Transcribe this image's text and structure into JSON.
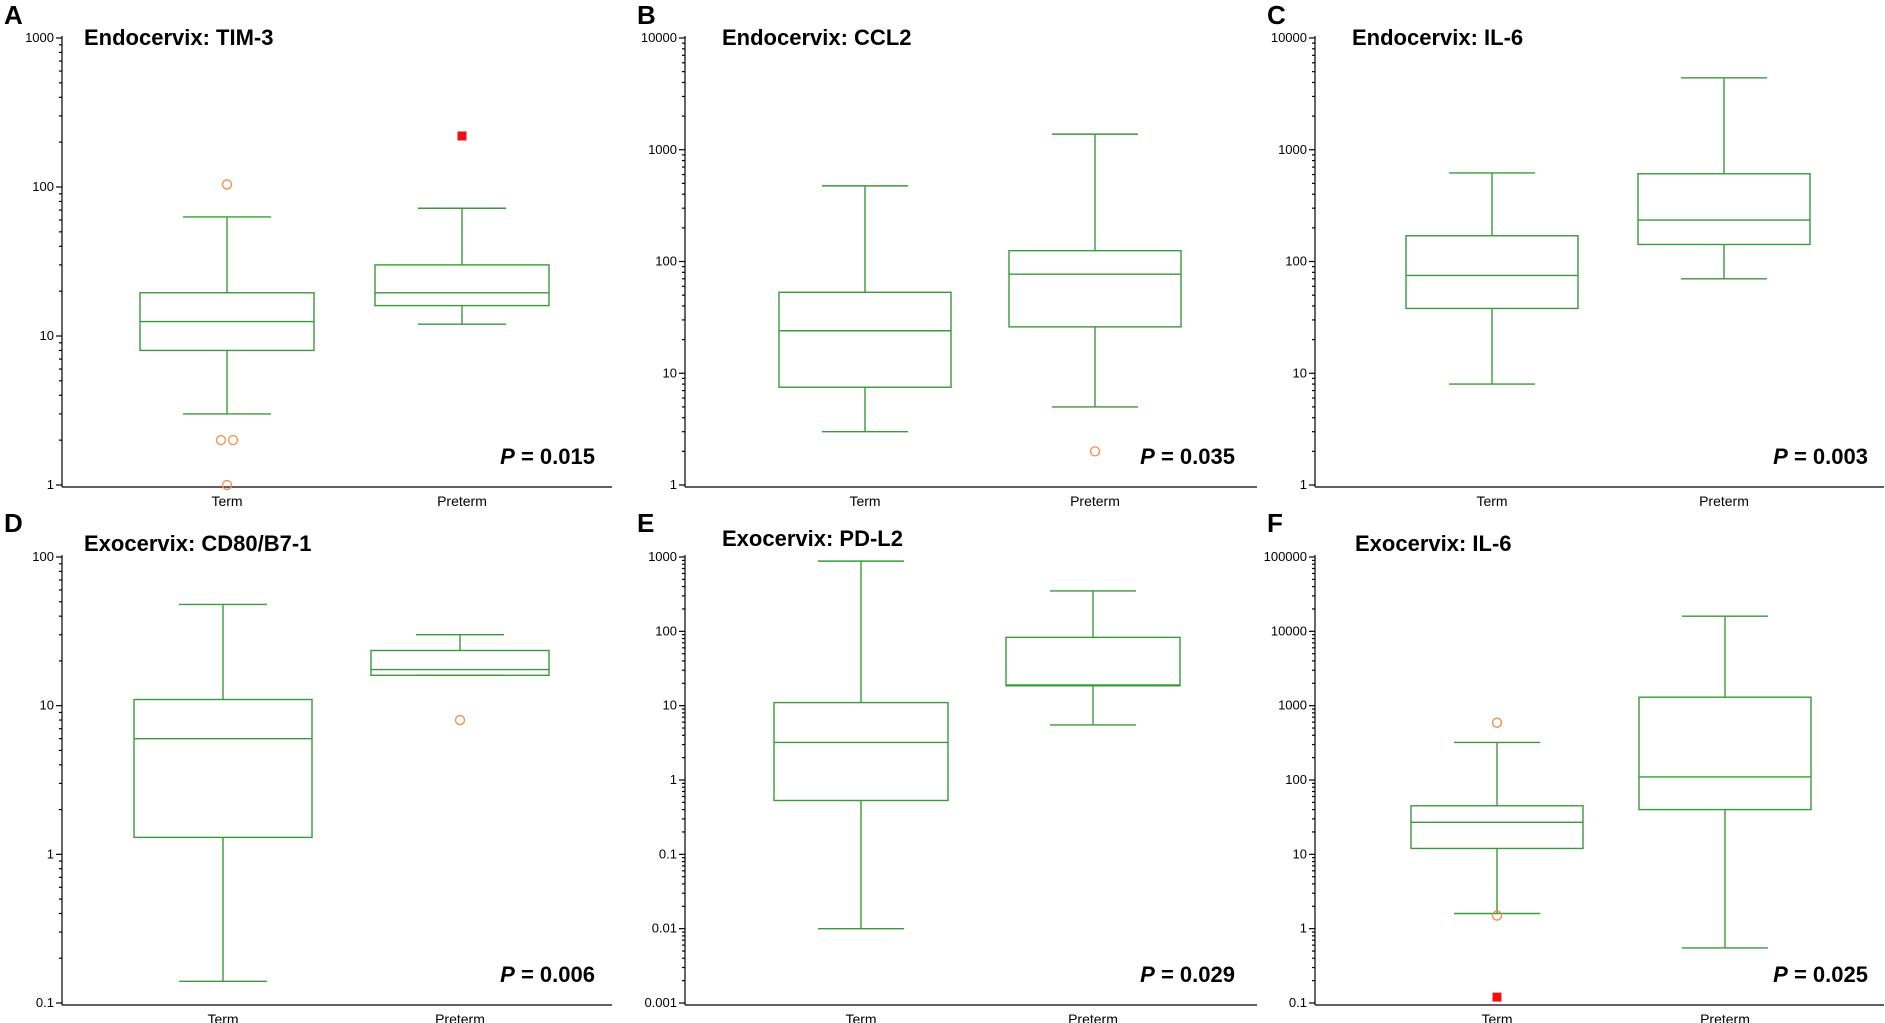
{
  "colors": {
    "box": "#3a9a3a",
    "outlier_open": "#f08c4a",
    "outlier_far": "#ee1111",
    "axis": "#000000"
  },
  "chart_data": [
    {
      "type": "boxplot",
      "panel": "A",
      "title": "Endocervix: TIM-3",
      "yscale": "log",
      "ylim": [
        1,
        1000
      ],
      "yticks": [
        1,
        10,
        100,
        1000
      ],
      "ytick_labels": [
        "1",
        "10",
        "100",
        "1000"
      ],
      "categories": [
        "Term",
        "Preterm"
      ],
      "series": [
        {
          "name": "Term",
          "whisker_low": 3,
          "q1": 8,
          "median": 12.5,
          "q3": 19.5,
          "whisker_high": 63,
          "outliers": [
            104,
            2,
            2,
            1
          ],
          "outlier_offsets": [
            0,
            -0.5,
            0.5,
            0
          ],
          "far_outliers": []
        },
        {
          "name": "Preterm",
          "whisker_low": 12,
          "q1": 16,
          "median": 19.5,
          "q3": 30,
          "whisker_high": 72,
          "outliers": [],
          "outlier_offsets": [],
          "far_outliers": [
            220
          ]
        }
      ],
      "pvalue_prefix": "P",
      "pvalue_text": " = 0.015"
    },
    {
      "type": "boxplot",
      "panel": "B",
      "title": "Endocervix: CCL2",
      "yscale": "log",
      "ylim": [
        1,
        10000
      ],
      "yticks": [
        1,
        10,
        100,
        1000,
        10000
      ],
      "ytick_labels": [
        "1",
        "10",
        "100",
        "1000",
        "10000"
      ],
      "categories": [
        "Term",
        "Preterm"
      ],
      "series": [
        {
          "name": "Term",
          "whisker_low": 3,
          "q1": 7.5,
          "median": 24,
          "q3": 53,
          "whisker_high": 475,
          "outliers": [],
          "outlier_offsets": [],
          "far_outliers": []
        },
        {
          "name": "Preterm",
          "whisker_low": 5,
          "q1": 26,
          "median": 77,
          "q3": 125,
          "whisker_high": 1380,
          "outliers": [
            2
          ],
          "outlier_offsets": [
            0
          ],
          "far_outliers": []
        }
      ],
      "pvalue_prefix": "P",
      "pvalue_text": " = 0.035"
    },
    {
      "type": "boxplot",
      "panel": "C",
      "title": "Endocervix: IL-6",
      "yscale": "log",
      "ylim": [
        1,
        10000
      ],
      "yticks": [
        1,
        10,
        100,
        1000,
        10000
      ],
      "ytick_labels": [
        "1",
        "10",
        "100",
        "1000",
        "10000"
      ],
      "categories": [
        "Term",
        "Preterm"
      ],
      "series": [
        {
          "name": "Term",
          "whisker_low": 8,
          "q1": 38,
          "median": 75,
          "q3": 170,
          "whisker_high": 620,
          "outliers": [],
          "outlier_offsets": [],
          "far_outliers": []
        },
        {
          "name": "Preterm",
          "whisker_low": 70,
          "q1": 142,
          "median": 235,
          "q3": 610,
          "whisker_high": 4400,
          "outliers": [],
          "outlier_offsets": [],
          "far_outliers": []
        }
      ],
      "pvalue_prefix": "P",
      "pvalue_text": " = 0.003"
    },
    {
      "type": "boxplot",
      "panel": "D",
      "title": "Exocervix: CD80/B7-1",
      "yscale": "log",
      "ylim": [
        0.1,
        100
      ],
      "yticks": [
        0.1,
        1,
        10,
        100
      ],
      "ytick_labels": [
        "0.1",
        "1",
        "10",
        "100"
      ],
      "categories": [
        "Term",
        "Preterm"
      ],
      "series": [
        {
          "name": "Term",
          "whisker_low": 0.14,
          "q1": 1.3,
          "median": 6,
          "q3": 11,
          "whisker_high": 48,
          "outliers": [],
          "outlier_offsets": [],
          "far_outliers": []
        },
        {
          "name": "Preterm",
          "whisker_low": 16,
          "q1": 16,
          "median": 17.5,
          "q3": 23.5,
          "whisker_high": 30,
          "outliers": [
            8
          ],
          "outlier_offsets": [
            0
          ],
          "far_outliers": []
        }
      ],
      "pvalue_prefix": "P",
      "pvalue_text": " = 0.006"
    },
    {
      "type": "boxplot",
      "panel": "E",
      "title": "Exocervix: PD-L2",
      "yscale": "log",
      "ylim": [
        0.001,
        1000
      ],
      "yticks": [
        0.001,
        0.01,
        0.1,
        1,
        10,
        100,
        1000
      ],
      "ytick_labels": [
        "0.001",
        "0.01",
        "0.1",
        "1",
        "10",
        "100",
        "1000"
      ],
      "categories": [
        "Term",
        "Preterm"
      ],
      "series": [
        {
          "name": "Term",
          "whisker_low": 0.01,
          "q1": 0.53,
          "median": 3.2,
          "q3": 11,
          "whisker_high": 880,
          "outliers": [],
          "outlier_offsets": [],
          "far_outliers": []
        },
        {
          "name": "Preterm",
          "whisker_low": 5.5,
          "q1": 18.5,
          "median": 19,
          "q3": 83,
          "whisker_high": 350,
          "outliers": [],
          "outlier_offsets": [],
          "far_outliers": []
        }
      ],
      "pvalue_prefix": "P",
      "pvalue_text": " = 0.029"
    },
    {
      "type": "boxplot",
      "panel": "F",
      "title": "Exocervix: IL-6",
      "yscale": "log",
      "ylim": [
        0.1,
        100000
      ],
      "yticks": [
        0.1,
        1,
        10,
        100,
        1000,
        10000,
        100000
      ],
      "ytick_labels": [
        "0.1",
        "1",
        "10",
        "100",
        "1000",
        "10000",
        "100000"
      ],
      "categories": [
        "Term",
        "Preterm"
      ],
      "series": [
        {
          "name": "Term",
          "whisker_low": 1.6,
          "q1": 12,
          "median": 27,
          "q3": 45,
          "whisker_high": 320,
          "outliers": [
            590,
            1.5
          ],
          "outlier_offsets": [
            0,
            0
          ],
          "far_outliers": [
            0.12
          ]
        },
        {
          "name": "Preterm",
          "whisker_low": 0.55,
          "q1": 40,
          "median": 110,
          "q3": 1300,
          "whisker_high": 16000,
          "outliers": [],
          "outlier_offsets": [],
          "far_outliers": []
        }
      ],
      "pvalue_prefix": "P",
      "pvalue_text": " = 0.025"
    }
  ]
}
